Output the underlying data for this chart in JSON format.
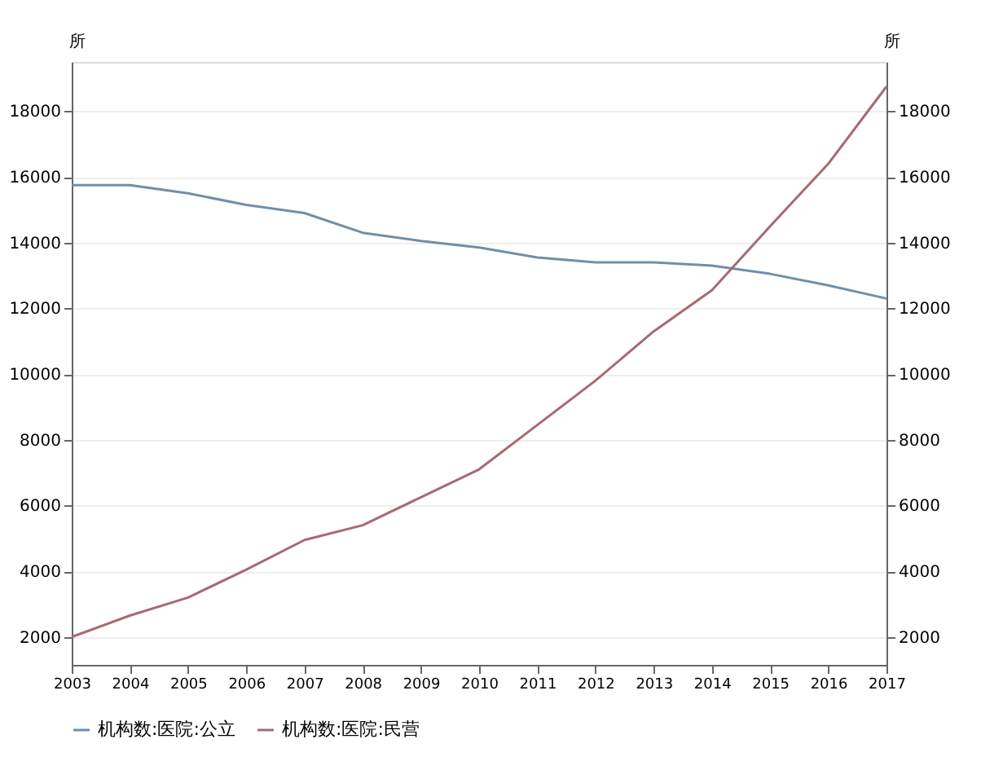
{
  "chart_data": {
    "type": "line",
    "ylabel": "所",
    "y2label": "所",
    "x": [
      2003,
      2004,
      2005,
      2006,
      2007,
      2008,
      2009,
      2010,
      2011,
      2012,
      2013,
      2014,
      2015,
      2016,
      2017
    ],
    "xlim": [
      2003,
      2017
    ],
    "xticks": [
      2003,
      2004,
      2005,
      2006,
      2007,
      2008,
      2009,
      2010,
      2011,
      2012,
      2013,
      2014,
      2015,
      2016,
      2017
    ],
    "ylim": [
      1150,
      19500
    ],
    "yticks": [
      2000,
      4000,
      6000,
      8000,
      10000,
      12000,
      14000,
      16000,
      18000
    ],
    "y2lim": [
      1150,
      19500
    ],
    "y2ticks": [
      2000,
      4000,
      6000,
      8000,
      10000,
      12000,
      14000,
      16000,
      18000
    ],
    "series": [
      {
        "name": "机构数:医院:公立",
        "color": "#6f8fab",
        "values": [
          15750,
          15750,
          15500,
          15150,
          14900,
          14300,
          14050,
          13850,
          13550,
          13400,
          13400,
          13300,
          13050,
          12700,
          12300
        ]
      },
      {
        "name": "机构数:医院:民营",
        "color": "#a86a72",
        "axis": "y2",
        "values": [
          2000,
          2650,
          3200,
          4050,
          4950,
          5400,
          6250,
          7100,
          8450,
          9800,
          11300,
          12550,
          14500,
          16400,
          18750
        ]
      }
    ],
    "grid": "y",
    "legend": "bottom",
    "marker": "none",
    "line_style": "solid"
  }
}
